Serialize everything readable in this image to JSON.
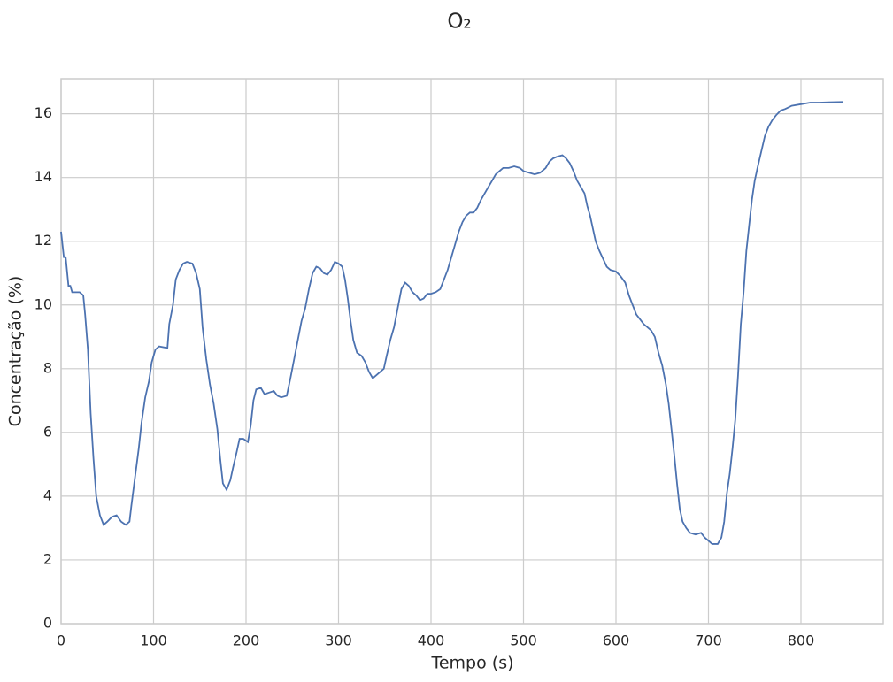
{
  "chart_data": {
    "type": "line",
    "title": "O₂",
    "xlabel": "Tempo (s)",
    "ylabel": "Concentração (%)",
    "x": [
      0,
      3,
      5,
      8,
      10,
      12,
      20,
      24,
      26,
      29,
      32,
      35,
      38,
      42,
      46,
      50,
      55,
      60,
      65,
      70,
      74,
      76,
      80,
      84,
      87,
      91,
      95,
      98,
      102,
      106,
      115,
      117,
      121,
      124,
      128,
      132,
      136,
      142,
      146,
      150,
      153,
      157,
      161,
      165,
      169,
      172,
      175,
      179,
      183,
      186,
      190,
      193,
      197,
      202,
      205,
      208,
      211,
      216,
      220,
      225,
      230,
      234,
      238,
      244,
      248,
      252,
      256,
      260,
      264,
      268,
      272,
      276,
      280,
      284,
      288,
      292,
      296,
      300,
      304,
      307,
      310,
      313,
      316,
      320,
      325,
      329,
      333,
      337,
      341,
      345,
      349,
      352,
      356,
      360,
      364,
      368,
      372,
      376,
      380,
      384,
      388,
      392,
      396,
      400,
      405,
      410,
      414,
      418,
      422,
      426,
      430,
      434,
      438,
      442,
      446,
      450,
      454,
      458,
      462,
      466,
      470,
      474,
      478,
      484,
      490,
      496,
      500,
      506,
      512,
      518,
      524,
      528,
      532,
      536,
      542,
      546,
      550,
      554,
      558,
      562,
      566,
      569,
      572,
      575,
      578,
      582,
      586,
      590,
      594,
      600,
      605,
      610,
      614,
      618,
      622,
      626,
      630,
      634,
      638,
      642,
      646,
      650,
      654,
      657,
      660,
      663,
      666,
      669,
      672,
      676,
      680,
      686,
      692,
      696,
      700,
      704,
      710,
      714,
      717,
      720,
      723,
      726,
      729,
      732,
      735,
      738,
      741,
      744,
      747,
      750,
      753,
      757,
      761,
      765,
      769,
      773,
      778,
      783,
      790,
      800,
      810,
      820,
      830,
      845
    ],
    "series": [
      {
        "name": "O2",
        "color": "#4c72b0",
        "values": [
          12.3,
          11.5,
          11.5,
          10.6,
          10.6,
          10.4,
          10.4,
          10.3,
          9.7,
          8.6,
          6.6,
          5.2,
          4.0,
          3.4,
          3.1,
          3.2,
          3.35,
          3.4,
          3.2,
          3.1,
          3.2,
          3.7,
          4.6,
          5.5,
          6.3,
          7.1,
          7.6,
          8.2,
          8.6,
          8.7,
          8.65,
          9.4,
          10.0,
          10.8,
          11.1,
          11.3,
          11.35,
          11.3,
          11.0,
          10.5,
          9.3,
          8.3,
          7.5,
          6.9,
          6.1,
          5.2,
          4.4,
          4.2,
          4.5,
          4.9,
          5.4,
          5.8,
          5.8,
          5.7,
          6.2,
          7.0,
          7.35,
          7.4,
          7.2,
          7.25,
          7.3,
          7.15,
          7.1,
          7.15,
          7.7,
          8.3,
          8.9,
          9.5,
          9.9,
          10.5,
          11.0,
          11.2,
          11.15,
          11.0,
          10.95,
          11.1,
          11.35,
          11.3,
          11.2,
          10.8,
          10.2,
          9.5,
          8.9,
          8.5,
          8.4,
          8.2,
          7.9,
          7.7,
          7.8,
          7.9,
          8.0,
          8.4,
          8.9,
          9.3,
          9.9,
          10.5,
          10.7,
          10.6,
          10.4,
          10.3,
          10.15,
          10.2,
          10.35,
          10.35,
          10.4,
          10.5,
          10.8,
          11.1,
          11.5,
          11.9,
          12.3,
          12.6,
          12.8,
          12.9,
          12.9,
          13.05,
          13.3,
          13.5,
          13.7,
          13.9,
          14.1,
          14.2,
          14.3,
          14.3,
          14.35,
          14.3,
          14.2,
          14.15,
          14.1,
          14.15,
          14.3,
          14.5,
          14.6,
          14.65,
          14.7,
          14.6,
          14.45,
          14.2,
          13.9,
          13.7,
          13.5,
          13.1,
          12.8,
          12.4,
          12.0,
          11.7,
          11.45,
          11.2,
          11.1,
          11.05,
          10.9,
          10.7,
          10.3,
          10.0,
          9.7,
          9.55,
          9.4,
          9.3,
          9.2,
          9.0,
          8.5,
          8.1,
          7.5,
          6.9,
          6.1,
          5.3,
          4.4,
          3.6,
          3.2,
          3.0,
          2.85,
          2.8,
          2.85,
          2.7,
          2.6,
          2.5,
          2.5,
          2.7,
          3.2,
          4.1,
          4.7,
          5.5,
          6.4,
          7.8,
          9.4,
          10.4,
          11.7,
          12.5,
          13.3,
          13.9,
          14.3,
          14.8,
          15.3,
          15.6,
          15.8,
          15.95,
          16.1,
          16.15,
          16.25,
          16.3,
          16.35,
          16.35,
          16.36,
          16.37
        ]
      }
    ],
    "xlim": [
      0,
      889
    ],
    "xticks": [
      0,
      100,
      200,
      300,
      400,
      500,
      600,
      700,
      800
    ],
    "ylim": [
      0,
      17.1
    ],
    "yticks": [
      0,
      2,
      4,
      6,
      8,
      10,
      12,
      14,
      16
    ],
    "grid": true
  }
}
